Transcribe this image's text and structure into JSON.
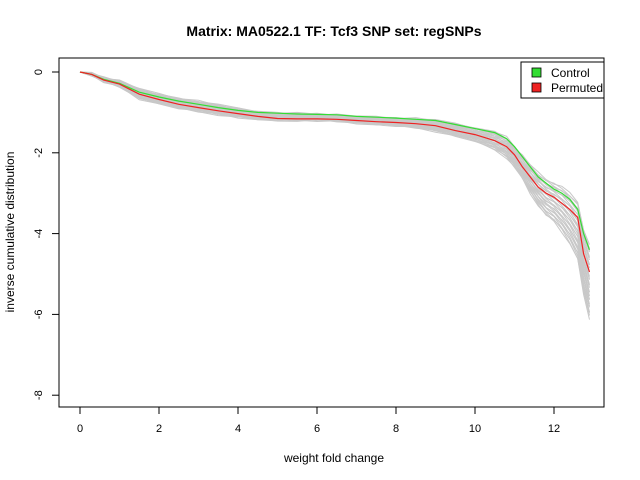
{
  "chart_data": {
    "type": "line",
    "title": "Matrix: MA0522.1 TF: Tcf3 SNP set: regSNPs",
    "xlabel": "weight fold change",
    "ylabel": "inverse cumulative distribution",
    "xlim": [
      0,
      12.9
    ],
    "ylim": [
      -8,
      0
    ],
    "xticks": [
      0,
      2,
      4,
      6,
      8,
      10,
      12
    ],
    "yticks": [
      0,
      -2,
      -4,
      -6,
      -8
    ],
    "grid": false,
    "legend_position": "top-right",
    "legend": [
      {
        "label": "Control",
        "color": "#33dd33"
      },
      {
        "label": "Permuted",
        "color": "#ee2222"
      }
    ],
    "series": [
      {
        "name": "Control",
        "color": "#33dd33",
        "x": [
          0,
          0.3,
          0.6,
          1.0,
          1.5,
          2.0,
          2.5,
          3.0,
          3.5,
          4.0,
          4.5,
          5.0,
          5.5,
          6.0,
          6.5,
          7.0,
          7.5,
          8.0,
          8.5,
          9.0,
          9.5,
          10.0,
          10.5,
          10.8,
          11.0,
          11.2,
          11.4,
          11.6,
          11.8,
          12.0,
          12.2,
          12.4,
          12.6,
          12.75,
          12.9
        ],
        "y": [
          0,
          -0.06,
          -0.18,
          -0.28,
          -0.5,
          -0.62,
          -0.72,
          -0.8,
          -0.88,
          -0.95,
          -1.0,
          -1.02,
          -1.04,
          -1.05,
          -1.06,
          -1.1,
          -1.12,
          -1.14,
          -1.17,
          -1.2,
          -1.3,
          -1.4,
          -1.5,
          -1.65,
          -1.85,
          -2.1,
          -2.35,
          -2.6,
          -2.75,
          -2.9,
          -3.0,
          -3.15,
          -3.4,
          -4.0,
          -4.4
        ]
      },
      {
        "name": "Permuted",
        "color": "#ee2222",
        "x": [
          0,
          0.3,
          0.6,
          1.0,
          1.5,
          2.0,
          2.5,
          3.0,
          3.5,
          4.0,
          4.5,
          5.0,
          5.5,
          6.0,
          6.5,
          7.0,
          7.5,
          8.0,
          8.5,
          9.0,
          9.5,
          10.0,
          10.5,
          10.8,
          11.0,
          11.2,
          11.4,
          11.6,
          11.8,
          12.0,
          12.2,
          12.4,
          12.6,
          12.75,
          12.9
        ],
        "y": [
          0,
          -0.06,
          -0.2,
          -0.3,
          -0.55,
          -0.68,
          -0.8,
          -0.88,
          -0.96,
          -1.03,
          -1.1,
          -1.15,
          -1.16,
          -1.16,
          -1.17,
          -1.2,
          -1.23,
          -1.25,
          -1.28,
          -1.33,
          -1.45,
          -1.55,
          -1.7,
          -1.85,
          -2.05,
          -2.35,
          -2.6,
          -2.85,
          -3.0,
          -3.1,
          -3.25,
          -3.4,
          -3.6,
          -4.5,
          -4.95
        ]
      }
    ],
    "background_band": {
      "color": "#c8c8c8",
      "x": [
        0,
        0.3,
        0.6,
        1.0,
        1.5,
        2.0,
        2.5,
        3.0,
        3.5,
        4.0,
        4.5,
        5.0,
        5.5,
        6.0,
        6.5,
        7.0,
        7.5,
        8.0,
        8.5,
        9.0,
        9.5,
        10.0,
        10.5,
        10.8,
        11.0,
        11.2,
        11.4,
        11.6,
        11.8,
        12.0,
        12.2,
        12.4,
        12.6,
        12.75,
        12.9
      ],
      "upper": [
        0,
        -0.04,
        -0.14,
        -0.22,
        -0.42,
        -0.55,
        -0.65,
        -0.72,
        -0.82,
        -0.9,
        -0.98,
        -1.02,
        -1.03,
        -1.04,
        -1.06,
        -1.1,
        -1.12,
        -1.14,
        -1.15,
        -1.2,
        -1.28,
        -1.38,
        -1.48,
        -1.62,
        -1.85,
        -2.05,
        -2.3,
        -2.5,
        -2.65,
        -2.75,
        -2.85,
        -3.0,
        -3.2,
        -3.9,
        -4.3
      ],
      "lower": [
        0,
        -0.08,
        -0.24,
        -0.36,
        -0.66,
        -0.78,
        -0.9,
        -0.98,
        -1.05,
        -1.12,
        -1.18,
        -1.2,
        -1.2,
        -1.2,
        -1.22,
        -1.26,
        -1.3,
        -1.33,
        -1.38,
        -1.46,
        -1.58,
        -1.72,
        -1.92,
        -2.12,
        -2.35,
        -2.65,
        -3.0,
        -3.3,
        -3.55,
        -3.7,
        -3.95,
        -4.25,
        -4.65,
        -5.5,
        -6.1
      ]
    },
    "background_lines": 30
  }
}
